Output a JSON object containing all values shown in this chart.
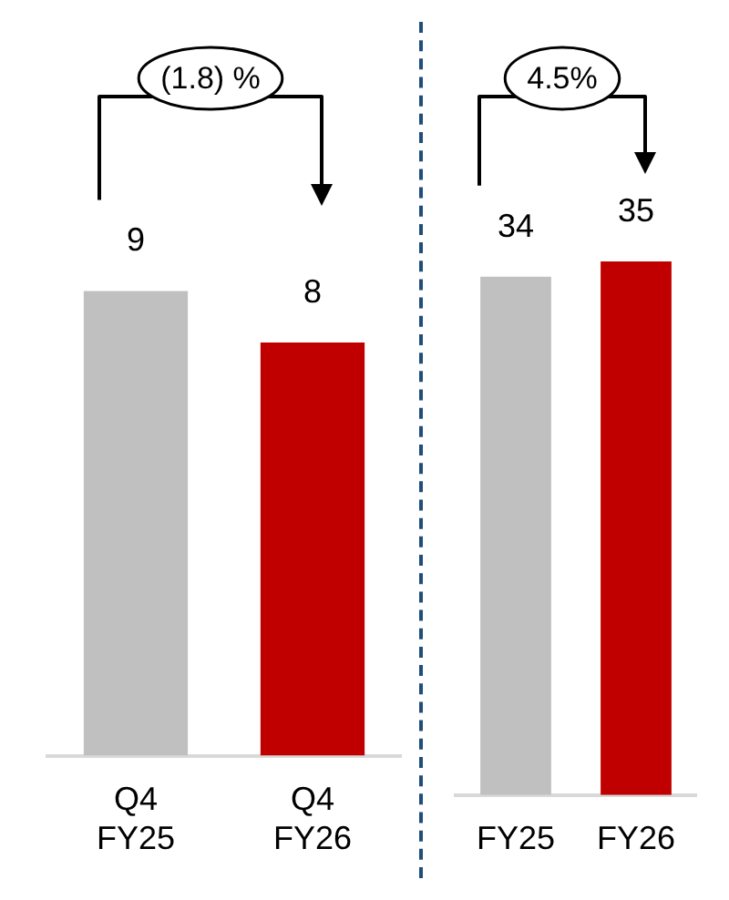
{
  "chart_data": [
    {
      "type": "bar",
      "categories": [
        "Q4 FY25",
        "Q4 FY26"
      ],
      "values": [
        9,
        8
      ],
      "colors": [
        "#c0c0c0",
        "#c00000"
      ],
      "data_labels": true,
      "annotations": [
        "(1.8) %"
      ]
    },
    {
      "type": "bar",
      "categories": [
        "FY25",
        "FY26"
      ],
      "values": [
        34,
        35
      ],
      "colors": [
        "#c0c0c0",
        "#c00000"
      ],
      "data_labels": true,
      "annotations": [
        "4.5%"
      ]
    }
  ]
}
